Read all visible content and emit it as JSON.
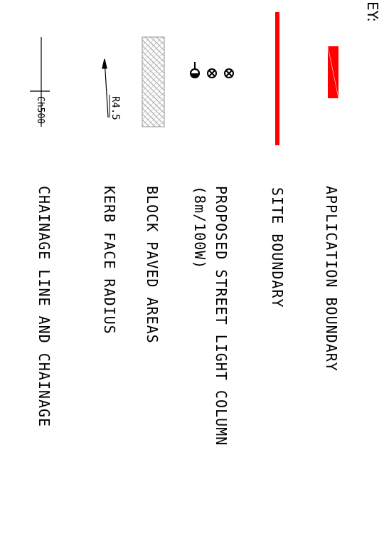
{
  "key": {
    "title": "EY:"
  },
  "legend": [
    {
      "id": "application",
      "label": "APPLICATION BOUNDARY",
      "color": "#ff0000"
    },
    {
      "id": "site",
      "label": "SITE BOUNDARY",
      "color": "#ff0000"
    },
    {
      "id": "street-light",
      "label": "PROPOSED STREET LIGHT COLUMN\n(8m/100W)"
    },
    {
      "id": "block-paved",
      "label": "BLOCK PAVED AREAS",
      "color": "#b8b8b8"
    },
    {
      "id": "kerb",
      "label": "KERB FACE RADIUS",
      "symbol_text": "R4.5"
    },
    {
      "id": "chainage",
      "label": "CHAINAGE LINE AND CHAINAGE",
      "symbol_text": "Ch500"
    }
  ]
}
